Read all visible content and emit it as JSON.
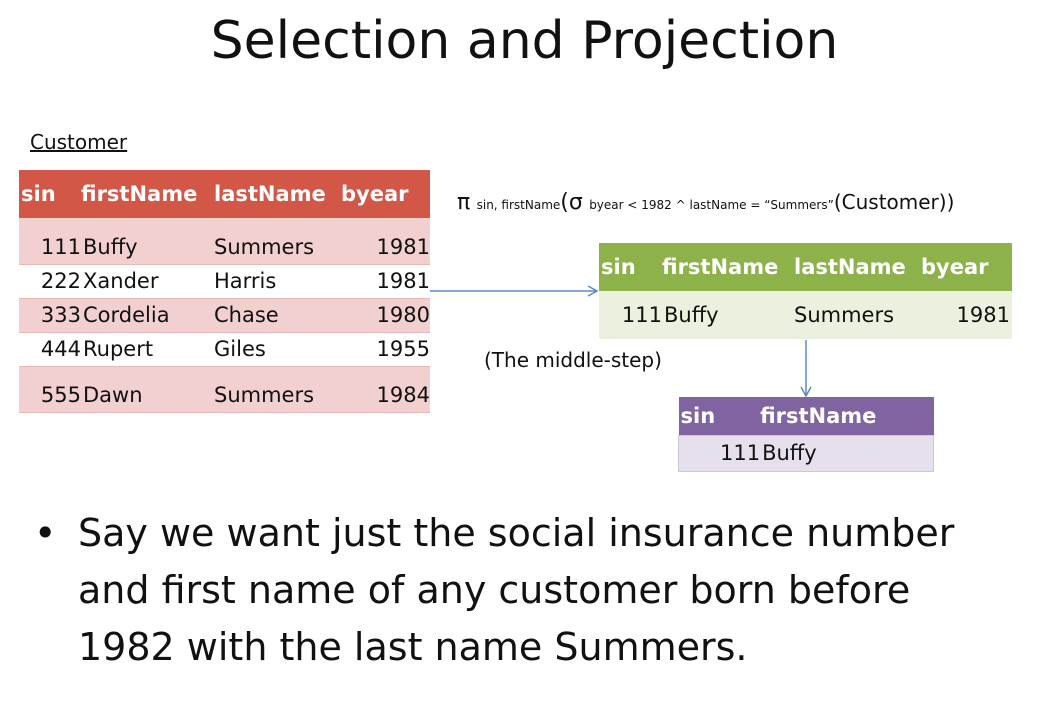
{
  "title": "Selection and Projection",
  "customer": {
    "caption": "Customer",
    "headers": [
      "sin",
      "firstName",
      "lastName",
      "byear"
    ],
    "rows": [
      [
        "111",
        "Buffy",
        "Summers",
        "1981"
      ],
      [
        "222",
        "Xander",
        "Harris",
        "1981"
      ],
      [
        "333",
        "Cordelia",
        "Chase",
        "1980"
      ],
      [
        "444",
        "Rupert",
        "Giles",
        "1955"
      ],
      [
        "555",
        "Dawn",
        "Summers",
        "1984"
      ]
    ]
  },
  "formula": {
    "pi": "π",
    "pi_sub": "sin, firstName",
    "open": "(",
    "sigma": "σ",
    "sigma_sub": "byear < 1982 ^ lastName = “Summers”",
    "arg": "(Customer))"
  },
  "middle": {
    "headers": [
      "sin",
      "firstName",
      "lastName",
      "byear"
    ],
    "row": [
      "111",
      "Buffy",
      "Summers",
      "1981"
    ],
    "note": "(The middle-step)"
  },
  "result": {
    "headers": [
      "sin",
      "firstName"
    ],
    "row": [
      "111",
      "Buffy"
    ]
  },
  "bullet": {
    "dot": "•",
    "text": "Say we want just the social insurance number and first name of any customer born before 1982 with the last name Summers."
  },
  "colors": {
    "customer_header": "#d25747",
    "customer_row": "#f2d0cf",
    "middle_header": "#8db24a",
    "middle_row": "#ebf1de",
    "result_header": "#8064a2",
    "result_row": "#e6e0ec",
    "arrow": "#5b8ac4"
  }
}
